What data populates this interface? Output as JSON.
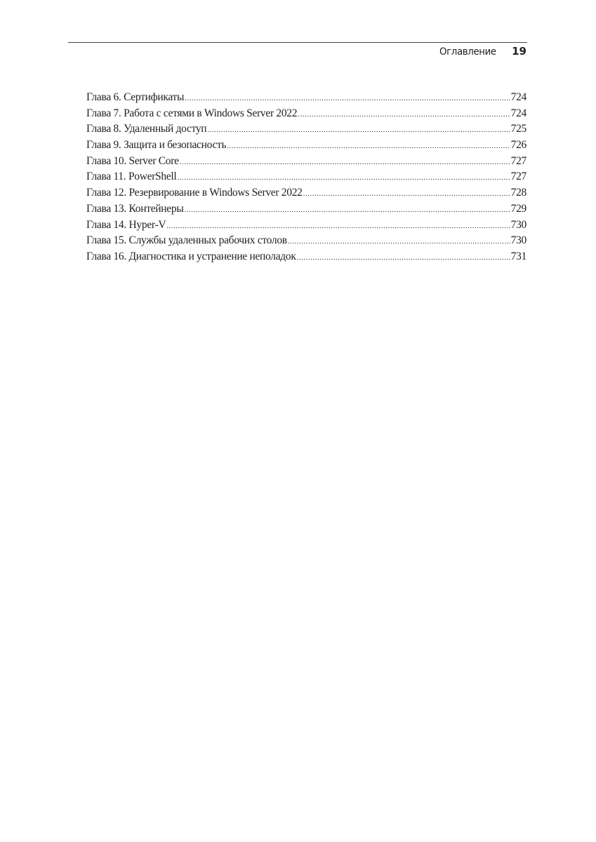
{
  "header": {
    "section_title": "Оглавление",
    "page_number": "19"
  },
  "toc": [
    {
      "label": "Глава 6. Сертификаты",
      "page": "724"
    },
    {
      "label": "Глава 7. Работа с сетями в Windows Server 2022",
      "page": "724"
    },
    {
      "label": "Глава 8. Удаленный доступ",
      "page": "725"
    },
    {
      "label": "Глава 9. Защита и безопасность",
      "page": "726"
    },
    {
      "label": "Глава 10. Server Core",
      "page": "727"
    },
    {
      "label": "Глава 11. PowerShell",
      "page": "727"
    },
    {
      "label": "Глава 12. Резервирование в Windows Server 2022",
      "page": "728"
    },
    {
      "label": "Глава 13. Контейнеры",
      "page": "729"
    },
    {
      "label": "Глава 14. Hyper-V",
      "page": "730"
    },
    {
      "label": "Глава 15. Службы удаленных рабочих столов",
      "page": "730"
    },
    {
      "label": "Глава 16. Диагностика и устранение неполадок",
      "page": "731"
    }
  ]
}
